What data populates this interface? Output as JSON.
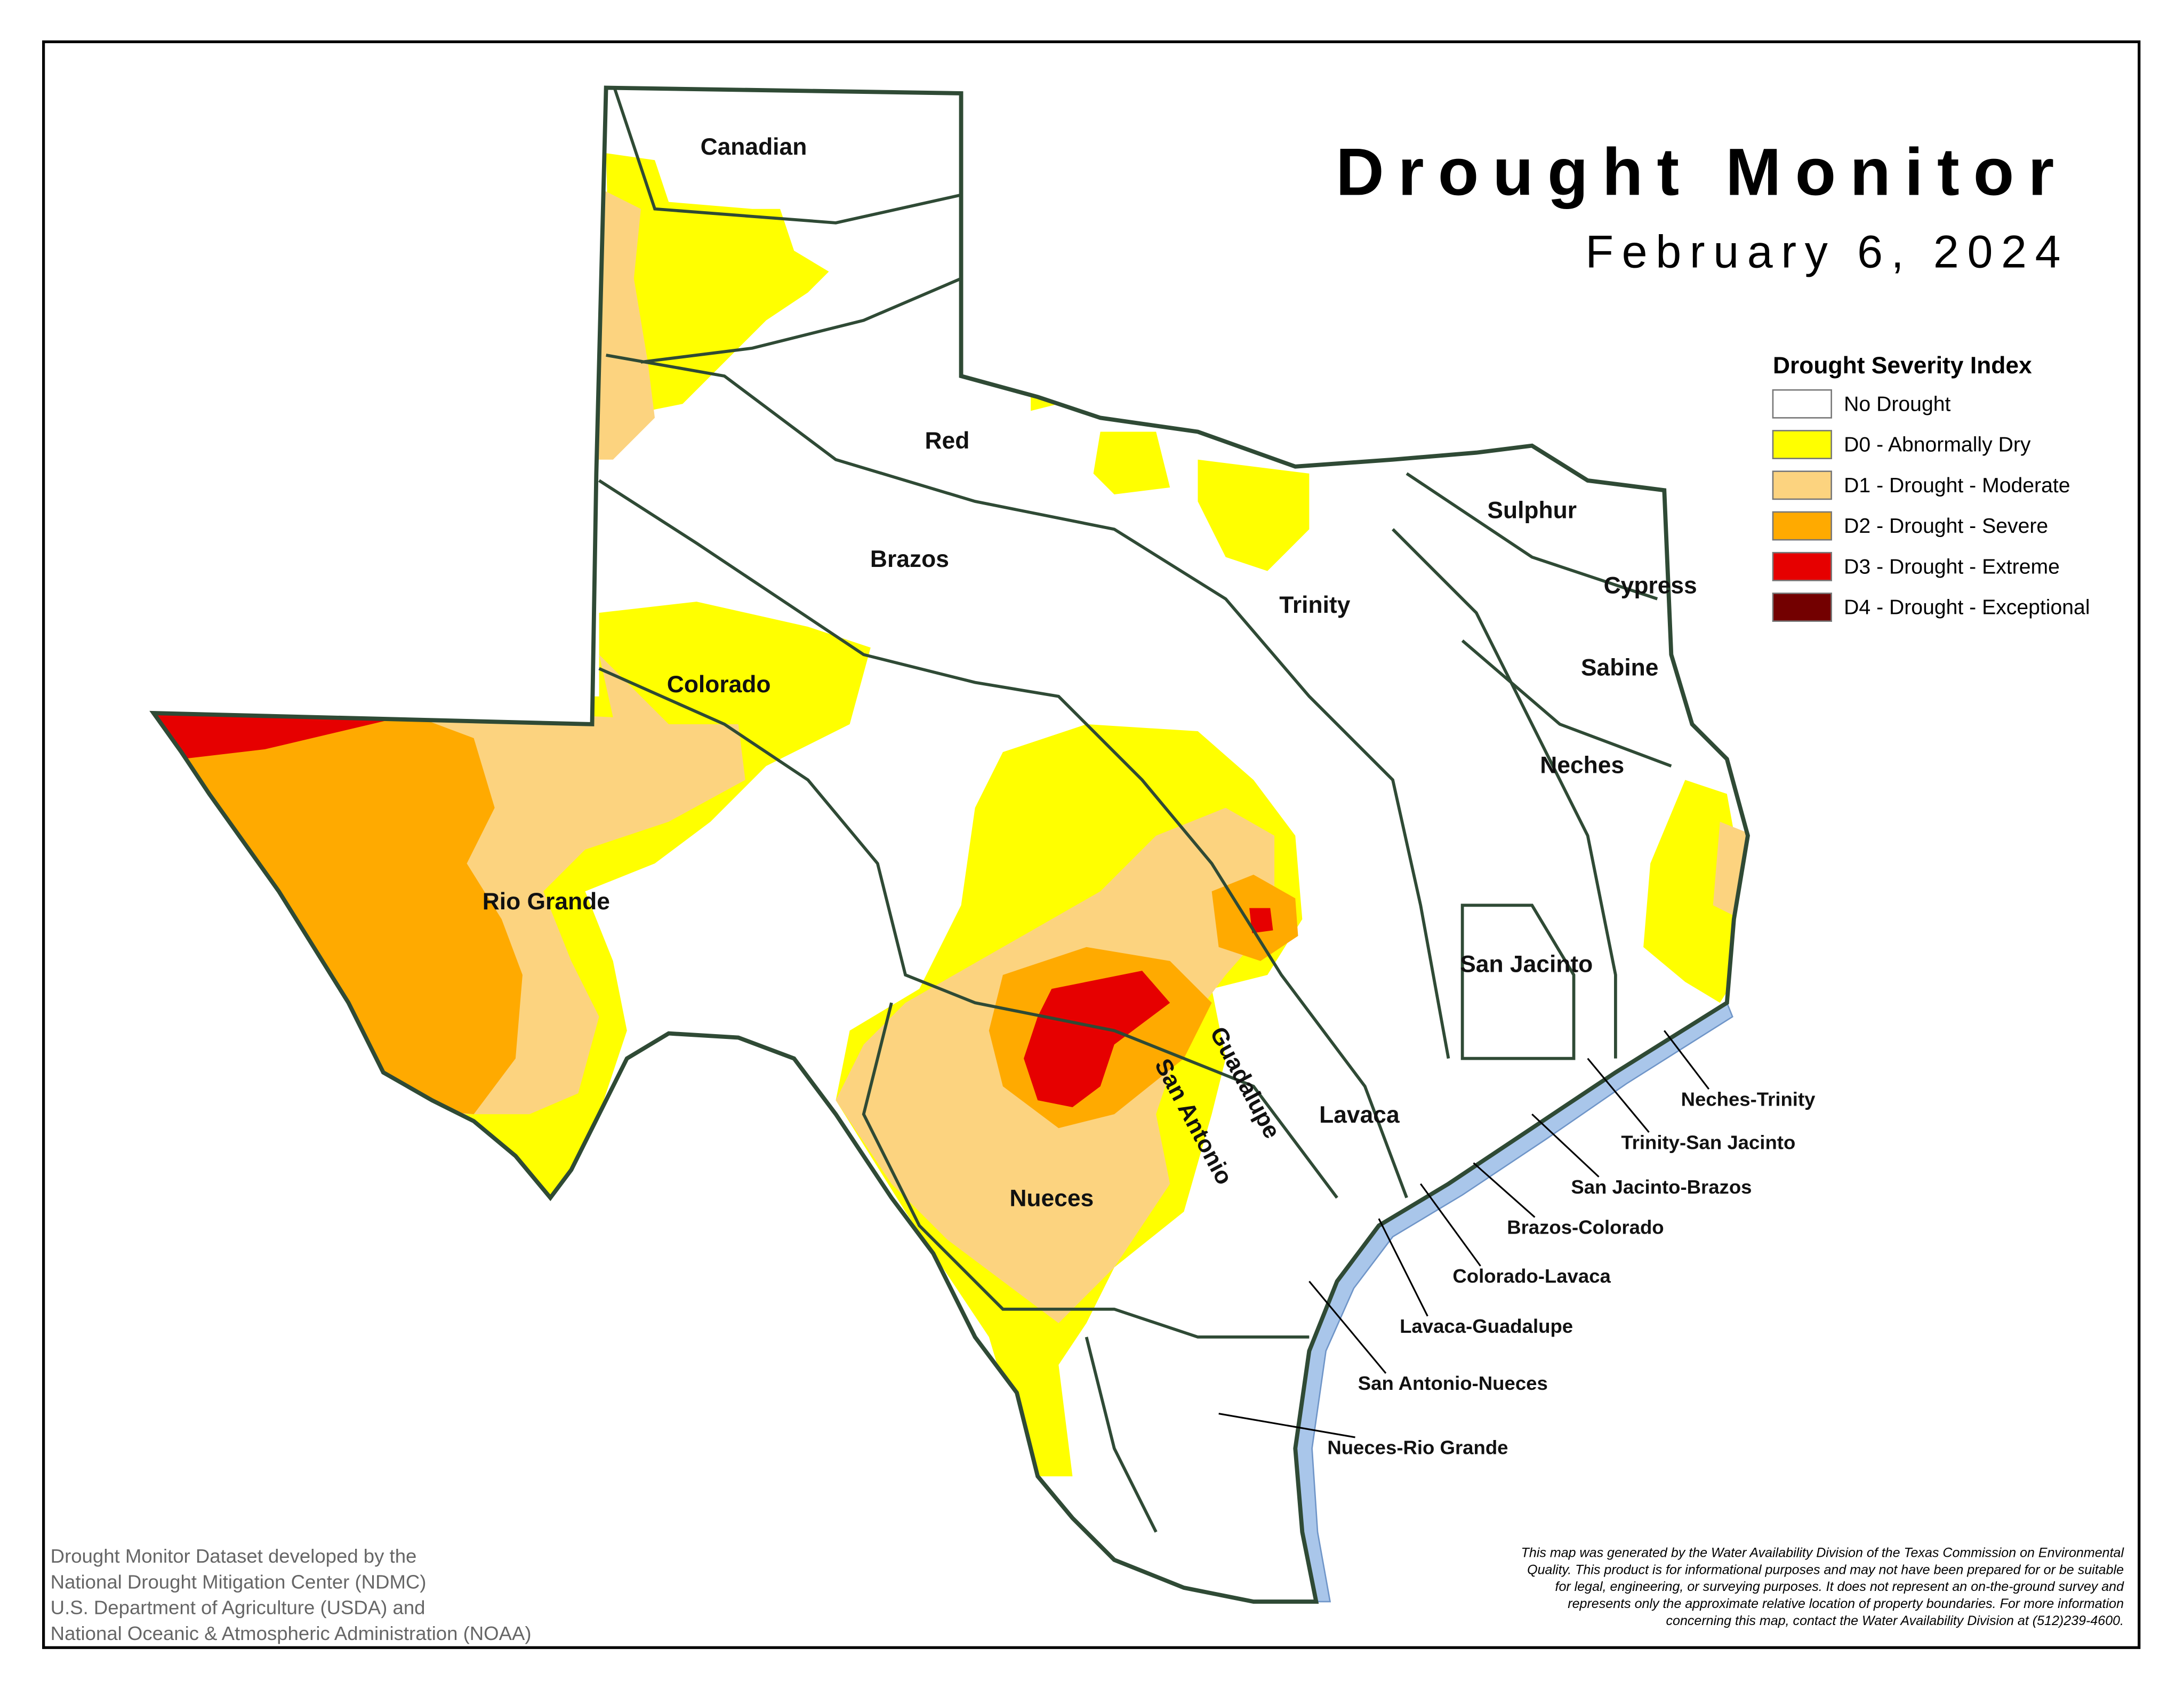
{
  "header": {
    "title": "Drought Monitor",
    "date": "February 6, 2024"
  },
  "legend": {
    "title": "Drought Severity Index",
    "items": [
      {
        "label": "No Drought",
        "color": "#ffffff"
      },
      {
        "label": "D0 - Abnormally Dry",
        "color": "#ffff00"
      },
      {
        "label": "D1 - Drought - Moderate",
        "color": "#fcd37f"
      },
      {
        "label": "D2 - Drought - Severe",
        "color": "#ffaa00"
      },
      {
        "label": "D3 - Drought - Extreme",
        "color": "#e60000"
      },
      {
        "label": "D4 - Drought - Exceptional",
        "color": "#730000"
      }
    ]
  },
  "basins": [
    "Canadian",
    "Red",
    "Brazos",
    "Colorado",
    "Rio Grande",
    "Trinity",
    "Sulphur",
    "Cypress",
    "Sabine",
    "Neches",
    "San Jacinto",
    "Guadalupe",
    "San Antonio",
    "Lavaca",
    "Nueces"
  ],
  "coastal_basins": [
    "Neches-Trinity",
    "Trinity-San Jacinto",
    "San Jacinto-Brazos",
    "Brazos-Colorado",
    "Colorado-Lavaca",
    "Lavaca-Guadalupe",
    "San Antonio-Nueces",
    "Nueces-Rio Grande"
  ],
  "credits": [
    "Drought Monitor Dataset developed by the",
    "National Drought Mitigation Center (NDMC)",
    "U.S. Department of Agriculture (USDA) and",
    "National Oceanic & Atmospheric Administration (NOAA)"
  ],
  "disclaimer": [
    "This map was generated by the Water Availability Division of the Texas Commission on Environmental",
    "Quality. This product is for informational purposes and may not have been prepared for or be suitable",
    "for legal, engineering, or surveying purposes. It does not represent an on-the-ground survey and",
    "represents only the approximate relative location of property boundaries. For more information",
    "concerning this map, contact the Water Availability Division at (512)239-4600."
  ]
}
